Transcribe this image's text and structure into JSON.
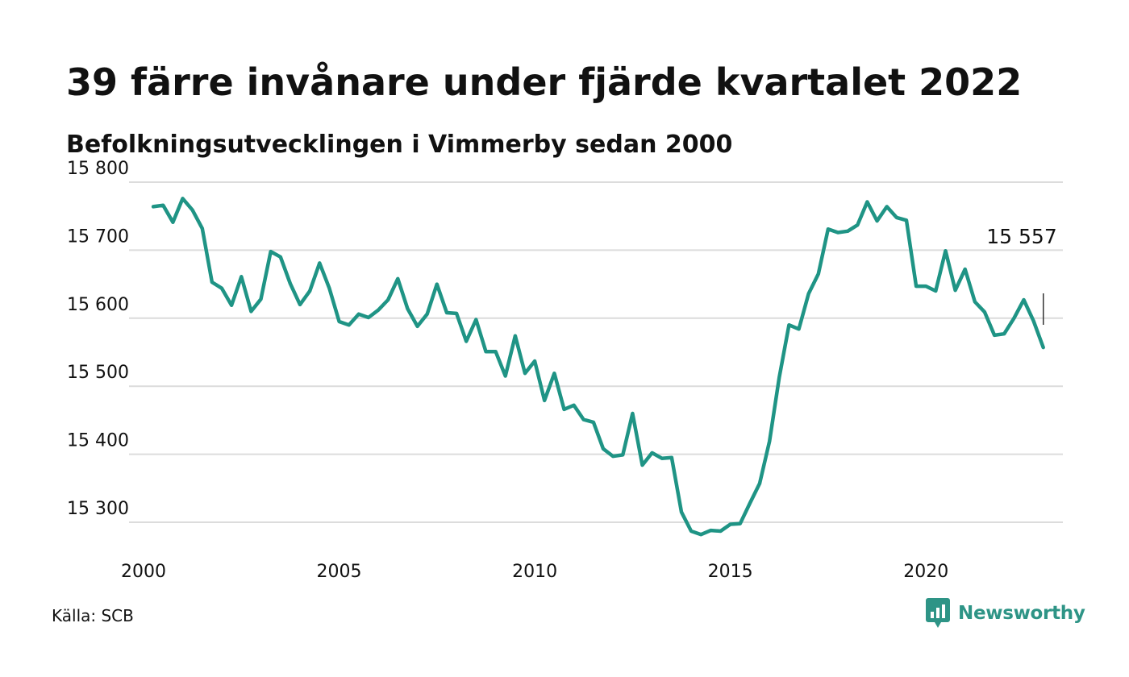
{
  "title": "39 färre invånare under fjärde kvartalet 2022",
  "subtitle": "Befolkningsutvecklingen i Vimmerby sedan 2000",
  "source": "Källa: SCB",
  "brand": {
    "name": "Newsworthy",
    "color": "#2e9486",
    "icon": "chart-bubble-icon"
  },
  "style": {
    "line_color": "#1f9485",
    "grid_color": "#dcdcdc"
  },
  "chart_data": {
    "type": "line",
    "title": "39 färre invånare under fjärde kvartalet 2022",
    "subtitle": "Befolkningsutvecklingen i Vimmerby sedan 2000",
    "xlabel": "",
    "ylabel": "",
    "xlim": [
      2000,
      2023.5
    ],
    "ylim": [
      15255,
      15800
    ],
    "grid": "horizontal",
    "yticks": [
      15300,
      15400,
      15500,
      15600,
      15700,
      15800
    ],
    "ytick_labels": [
      "15 300",
      "15 400",
      "15 500",
      "15 600",
      "15 700",
      "15 800"
    ],
    "xticks": [
      2000,
      2005,
      2010,
      2015,
      2020
    ],
    "xtick_labels": [
      "2000",
      "2005",
      "2010",
      "2015",
      "2020"
    ],
    "last_value_label": "15 557",
    "series": [
      {
        "x": [
          2000.25,
          2000.5,
          2000.75,
          2001.0,
          2001.25,
          2001.5,
          2001.75,
          2002.0,
          2002.25,
          2002.5,
          2002.75,
          2003.0,
          2003.25,
          2003.5,
          2003.75,
          2004.0,
          2004.25,
          2004.5,
          2004.75,
          2005.0,
          2005.25,
          2005.5,
          2005.75,
          2006.0,
          2006.25,
          2006.5,
          2006.75,
          2007.0,
          2007.25,
          2007.5,
          2007.75,
          2008.0,
          2008.25,
          2008.5,
          2008.75,
          2009.0,
          2009.25,
          2009.5,
          2009.75,
          2010.0,
          2010.25,
          2010.5,
          2010.75,
          2011.0,
          2011.25,
          2011.5,
          2011.75,
          2012.0,
          2012.25,
          2012.5,
          2012.75,
          2013.0,
          2013.25,
          2013.5,
          2013.75,
          2014.0,
          2014.25,
          2014.5,
          2014.75,
          2015.0,
          2015.25,
          2015.5,
          2015.75,
          2016.0,
          2016.25,
          2016.5,
          2016.75,
          2017.0,
          2017.25,
          2017.5,
          2017.75,
          2018.0,
          2018.25,
          2018.5,
          2018.75,
          2019.0,
          2019.25,
          2019.5,
          2019.75,
          2020.0,
          2020.25,
          2020.5,
          2020.75,
          2021.0,
          2021.25,
          2021.5,
          2021.75,
          2022.0,
          2022.25,
          2022.5,
          2022.75,
          2023.0
        ],
        "values": [
          15764,
          15766,
          15741,
          15776,
          15759,
          15732,
          15653,
          15644,
          15619,
          15661,
          15610,
          15628,
          15698,
          15690,
          15651,
          15620,
          15640,
          15681,
          15644,
          15595,
          15590,
          15606,
          15601,
          15612,
          15627,
          15658,
          15614,
          15588,
          15606,
          15650,
          15608,
          15607,
          15566,
          15598,
          15551,
          15551,
          15515,
          15574,
          15519,
          15537,
          15479,
          15519,
          15466,
          15472,
          15451,
          15447,
          15408,
          15397,
          15399,
          15460,
          15384,
          15402,
          15394,
          15395,
          15315,
          15287,
          15282,
          15288,
          15287,
          15297,
          15298,
          15328,
          15357,
          15419,
          15513,
          15590,
          15584,
          15636,
          15665,
          15731,
          15726,
          15728,
          15737,
          15771,
          15743,
          15764,
          15748,
          15744,
          15647,
          15647,
          15640,
          15699,
          15641,
          15672,
          15624,
          15609,
          15575,
          15577,
          15600,
          15627,
          15596,
          15557
        ]
      }
    ]
  }
}
